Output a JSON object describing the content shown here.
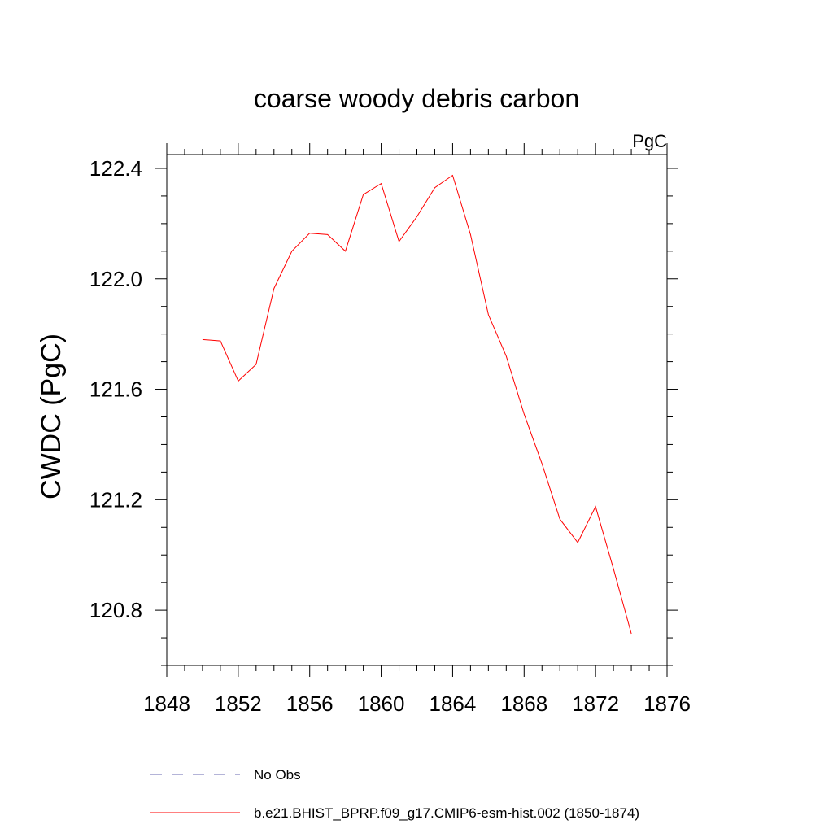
{
  "chart_data": {
    "type": "line",
    "title": "coarse woody debris carbon",
    "units_label": "PgC",
    "ylabel": "CWDC  (PgC)",
    "xlabel": "",
    "xlim": [
      1848,
      1876
    ],
    "ylim": [
      120.6,
      122.45
    ],
    "x_major_ticks": [
      1848,
      1852,
      1856,
      1860,
      1864,
      1868,
      1872,
      1876
    ],
    "x_tick_labels": [
      "1848",
      "1852",
      "1856",
      "1860",
      "1864",
      "1868",
      "1872",
      "1876"
    ],
    "y_major_ticks": [
      120.8,
      121.2,
      121.6,
      122.0,
      122.4
    ],
    "y_tick_labels": [
      "120.8",
      "121.2",
      "121.6",
      "122.0",
      "122.4"
    ],
    "grid": false,
    "legend_position": "bottom",
    "series": [
      {
        "name": "b.e21.BHIST_BPRP.f09_g17.CMIP6-esm-hist.002 (1850-1874)",
        "color": "#ff0000",
        "style": "solid",
        "x": [
          1850,
          1851,
          1852,
          1853,
          1854,
          1855,
          1856,
          1857,
          1858,
          1859,
          1860,
          1861,
          1862,
          1863,
          1864,
          1865,
          1866,
          1867,
          1868,
          1869,
          1870,
          1871,
          1872,
          1873,
          1874
        ],
        "y": [
          121.78,
          121.775,
          121.63,
          121.69,
          121.965,
          122.1,
          122.165,
          122.16,
          122.1,
          122.305,
          122.345,
          122.135,
          122.225,
          122.33,
          122.375,
          122.16,
          121.87,
          121.72,
          121.51,
          121.33,
          121.13,
          121.045,
          121.175,
          120.95,
          120.715
        ]
      }
    ],
    "legend": [
      {
        "label": "No Obs",
        "color": "#6a6ab0",
        "style": "dashed"
      },
      {
        "label": "b.e21.BHIST_BPRP.f09_g17.CMIP6-esm-hist.002 (1850-1874)",
        "color": "#ff0000",
        "style": "solid"
      }
    ]
  }
}
